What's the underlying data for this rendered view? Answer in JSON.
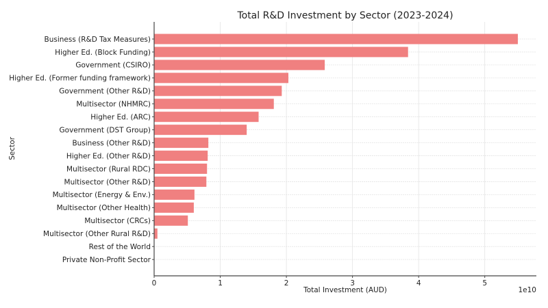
{
  "chart_data": {
    "type": "bar",
    "orientation": "horizontal",
    "title": "Total R&D Investment by Sector (2023-2024)",
    "xlabel": "Total Investment (AUD)",
    "ylabel": "Sector",
    "x_offset_label": "1e10",
    "xlim": [
      0,
      57800000000.0
    ],
    "xticks": [
      0,
      1,
      2,
      3,
      4,
      5
    ],
    "grid": true,
    "bar_color": "#f08080",
    "categories": [
      "Business (R&D Tax Measures)",
      "Higher Ed. (Block Funding)",
      "Government (CSIRO)",
      "Higher Ed. (Former funding framework)",
      "Government (Other R&D)",
      "Multisector (NHMRC)",
      "Higher Ed. (ARC)",
      "Government (DST Group)",
      "Business (Other R&D)",
      "Higher Ed. (Other R&D)",
      "Multisector (Rural RDC)",
      "Multisector (Other R&D)",
      "Multisector (Energy & Env.)",
      "Multisector (Other Health)",
      "Multisector (CRCs)",
      "Multisector (Other Rural R&D)",
      "Rest of the World",
      "Private Non-Profit Sector"
    ],
    "values": [
      55000000000.0,
      38400000000.0,
      25800000000.0,
      20300000000.0,
      19300000000.0,
      18100000000.0,
      15800000000.0,
      14000000000.0,
      8200000000.0,
      8100000000.0,
      8000000000.0,
      7900000000.0,
      6100000000.0,
      6000000000.0,
      5100000000.0,
      500000000.0,
      20000000.0,
      5000000.0
    ]
  }
}
